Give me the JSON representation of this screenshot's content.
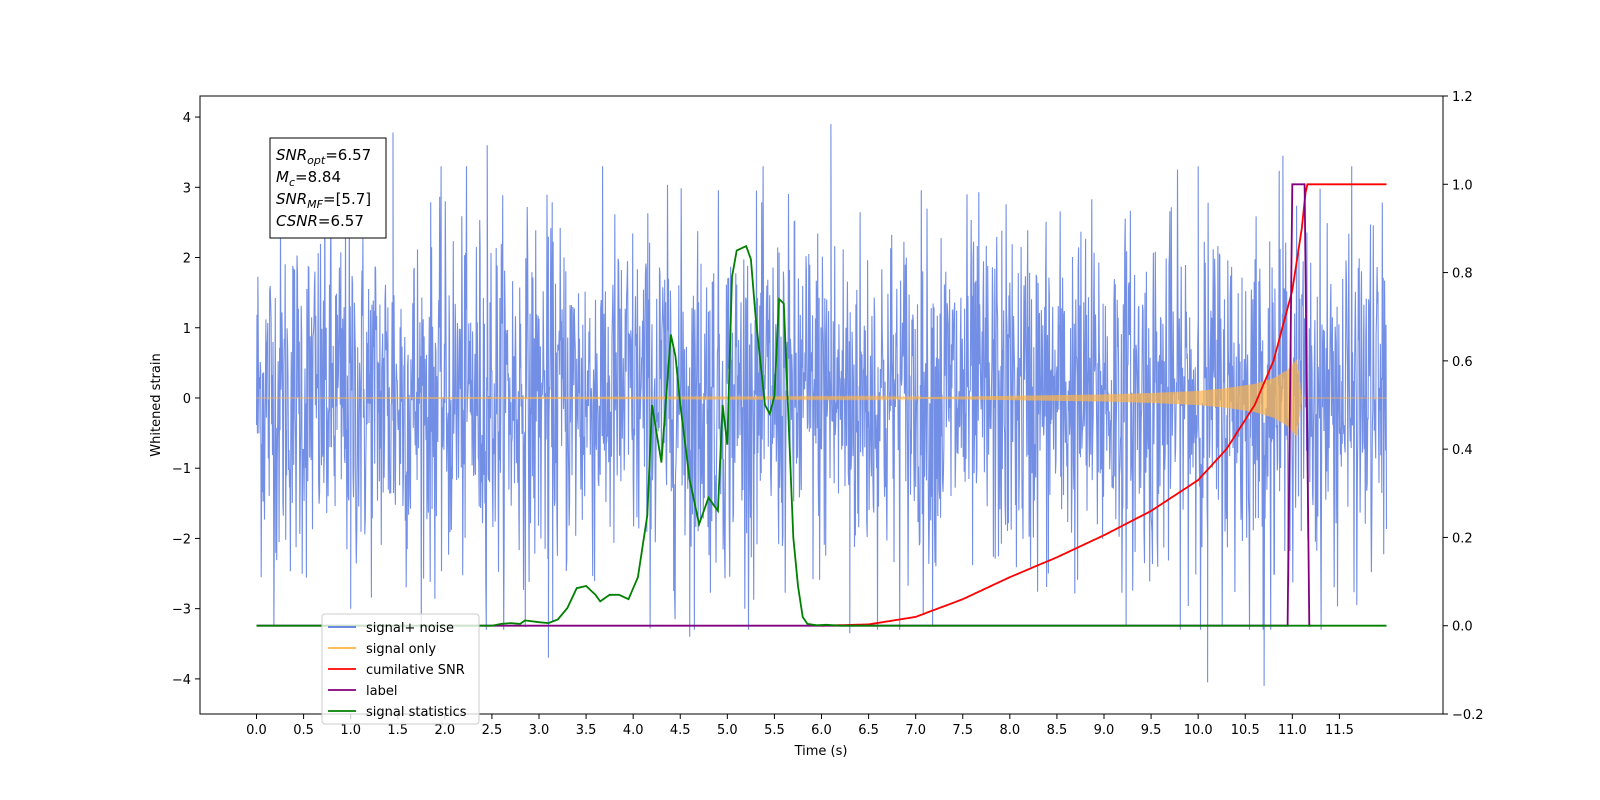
{
  "chart_data": {
    "type": "line",
    "title": "",
    "xlabel": "Time (s)",
    "ylabel": "Whitened strain",
    "xlim": [
      -0.6,
      12.6
    ],
    "ylim": [
      -4.5,
      4.3
    ],
    "y2lim": [
      -0.2,
      1.2
    ],
    "grid": false,
    "legend_position": "lower-left",
    "x_ticks": [
      "0.0",
      "0.5",
      "1.0",
      "1.5",
      "2.0",
      "2.5",
      "3.0",
      "3.5",
      "4.0",
      "4.5",
      "5.0",
      "5.5",
      "6.0",
      "6.5",
      "7.0",
      "7.5",
      "8.0",
      "8.5",
      "9.0",
      "9.5",
      "10.0",
      "10.5",
      "11.0",
      "11.5"
    ],
    "y_ticks": [
      "4",
      "3",
      "2",
      "1",
      "0",
      "−1",
      "−2",
      "−3",
      "−4"
    ],
    "y2_ticks": [
      "1.2",
      "1.0",
      "0.8",
      "0.6",
      "0.4",
      "0.2",
      "0.0",
      "−0.2"
    ],
    "annotation": {
      "lines": [
        {
          "sym": "SNR",
          "sub": "opt",
          "val": "=6.57"
        },
        {
          "sym": "M",
          "sub": "c",
          "val": "=8.84"
        },
        {
          "sym": "SNR",
          "sub": "MF",
          "val": "=[5.7]"
        },
        {
          "sym": "CSNR",
          "sub": "",
          "val": "=6.57"
        }
      ]
    },
    "legend": [
      {
        "label": "signal+ noise",
        "color": "#5a7be0"
      },
      {
        "label": "signal only",
        "color": "#ffb347"
      },
      {
        "label": "cumilative SNR",
        "color": "#ff0000"
      },
      {
        "label": "label",
        "color": "#800080"
      },
      {
        "label": "signal statistics",
        "color": "#008000"
      }
    ],
    "series": [
      {
        "name": "signal+ noise",
        "axis": "left",
        "color": "#5a7be0",
        "x_range": [
          0.0,
          12.0
        ],
        "typical_band": [
          -1.9,
          2.1
        ],
        "extreme_peaks": [
          [
            1.45,
            3.78
          ],
          [
            2.45,
            3.6
          ],
          [
            6.1,
            3.9
          ],
          [
            10.0,
            3.3
          ],
          [
            10.9,
            3.45
          ],
          [
            3.1,
            -3.7
          ],
          [
            4.6,
            -3.4
          ],
          [
            10.1,
            -4.05
          ],
          [
            10.7,
            -4.1
          ],
          [
            6.3,
            -3.35
          ],
          [
            1.0,
            -3.0
          ]
        ]
      },
      {
        "name": "signal only",
        "axis": "left",
        "color": "#ffb347",
        "x": [
          0.0,
          7.0,
          8.0,
          9.0,
          9.5,
          10.0,
          10.3,
          10.6,
          10.8,
          10.95,
          11.05,
          11.1,
          11.2,
          12.0
        ],
        "envelope": [
          0.0,
          0.01,
          0.03,
          0.05,
          0.07,
          0.1,
          0.14,
          0.2,
          0.28,
          0.4,
          0.55,
          0.0,
          0.0,
          0.0
        ]
      },
      {
        "name": "cumilative SNR",
        "axis": "right",
        "color": "#ff0000",
        "x": [
          6.0,
          6.5,
          7.0,
          7.5,
          8.0,
          8.5,
          9.0,
          9.5,
          10.0,
          10.3,
          10.6,
          10.8,
          11.0,
          11.1,
          11.15,
          12.0
        ],
        "y": [
          0.0,
          0.003,
          0.02,
          0.06,
          0.11,
          0.155,
          0.205,
          0.26,
          0.33,
          0.4,
          0.5,
          0.6,
          0.76,
          0.9,
          1.0,
          1.0
        ]
      },
      {
        "name": "label",
        "axis": "right",
        "color": "#800080",
        "x": [
          0.0,
          10.95,
          11.0,
          11.13,
          11.18,
          11.2
        ],
        "y": [
          0.0,
          0.0,
          1.0,
          1.0,
          0.0,
          0.0
        ]
      },
      {
        "name": "signal statistics",
        "axis": "right",
        "color": "#008000",
        "x": [
          0.0,
          2.5,
          2.6,
          2.7,
          2.8,
          2.85,
          3.0,
          3.1,
          3.2,
          3.3,
          3.4,
          3.5,
          3.6,
          3.65,
          3.75,
          3.85,
          3.95,
          4.05,
          4.15,
          4.2,
          4.3,
          4.4,
          4.45,
          4.5,
          4.6,
          4.7,
          4.8,
          4.9,
          4.95,
          5.0,
          5.05,
          5.1,
          5.2,
          5.25,
          5.3,
          5.4,
          5.45,
          5.5,
          5.55,
          5.6,
          5.7,
          5.75,
          5.8,
          5.85,
          5.95,
          6.05,
          6.2,
          6.5,
          12.0
        ],
        "y": [
          0.0,
          0.0,
          0.004,
          0.006,
          0.004,
          0.012,
          0.008,
          0.006,
          0.014,
          0.04,
          0.085,
          0.09,
          0.07,
          0.055,
          0.07,
          0.07,
          0.06,
          0.11,
          0.25,
          0.5,
          0.37,
          0.66,
          0.61,
          0.5,
          0.33,
          0.23,
          0.29,
          0.26,
          0.5,
          0.41,
          0.79,
          0.85,
          0.86,
          0.83,
          0.7,
          0.5,
          0.48,
          0.52,
          0.74,
          0.73,
          0.2,
          0.09,
          0.02,
          0.004,
          0.001,
          0.002,
          0.0,
          0.0,
          0.0
        ]
      }
    ]
  }
}
